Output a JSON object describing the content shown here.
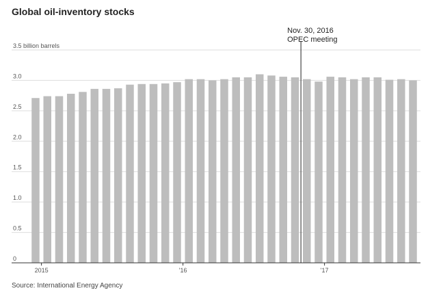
{
  "chart_data": {
    "type": "bar",
    "title": "Global oil-inventory stocks",
    "source": "Source: International Energy Agency",
    "ylabel": "billion barrels",
    "ylim": [
      0,
      3.5
    ],
    "y_ticks": [
      {
        "value": 0,
        "label": "0"
      },
      {
        "value": 0.5,
        "label": "0.5"
      },
      {
        "value": 1.0,
        "label": "1.0"
      },
      {
        "value": 1.5,
        "label": "1.5"
      },
      {
        "value": 2.0,
        "label": "2.0"
      },
      {
        "value": 2.5,
        "label": "2.5"
      },
      {
        "value": 3.0,
        "label": "3.0"
      },
      {
        "value": 3.5,
        "label": "3.5 billion barrels"
      }
    ],
    "x_ticks": [
      {
        "index": 1,
        "label": "2015"
      },
      {
        "index": 13,
        "label": "'16"
      },
      {
        "index": 25,
        "label": "'17"
      }
    ],
    "categories": [
      "Jan 2015",
      "Feb 2015",
      "Mar 2015",
      "Apr 2015",
      "May 2015",
      "Jun 2015",
      "Jul 2015",
      "Aug 2015",
      "Sep 2015",
      "Oct 2015",
      "Nov 2015",
      "Dec 2015",
      "Jan 2016",
      "Feb 2016",
      "Mar 2016",
      "Apr 2016",
      "May 2016",
      "Jun 2016",
      "Jul 2016",
      "Aug 2016",
      "Sep 2016",
      "Oct 2016",
      "Nov 2016",
      "Dec 2016",
      "Jan 2017",
      "Feb 2017",
      "Mar 2017",
      "Apr 2017",
      "May 2017",
      "Jun 2017",
      "Jul 2017",
      "Aug 2017",
      "Sep 2017"
    ],
    "values": [
      2.71,
      2.74,
      2.74,
      2.78,
      2.81,
      2.86,
      2.86,
      2.87,
      2.93,
      2.94,
      2.94,
      2.95,
      2.97,
      3.02,
      3.02,
      3.0,
      3.02,
      3.05,
      3.05,
      3.1,
      3.08,
      3.06,
      3.05,
      3.02,
      2.98,
      3.06,
      3.05,
      3.02,
      3.05,
      3.05,
      3.01,
      3.02,
      3.0
    ],
    "annotation": {
      "label_line1": "Nov. 30, 2016",
      "label_line2": "OPEC meeting",
      "after_category": "Nov 2016"
    },
    "colors": {
      "bar": "#bdbdbd",
      "axis": "#333333",
      "grid": "#dddddd",
      "annotation_line": "#222222"
    }
  }
}
